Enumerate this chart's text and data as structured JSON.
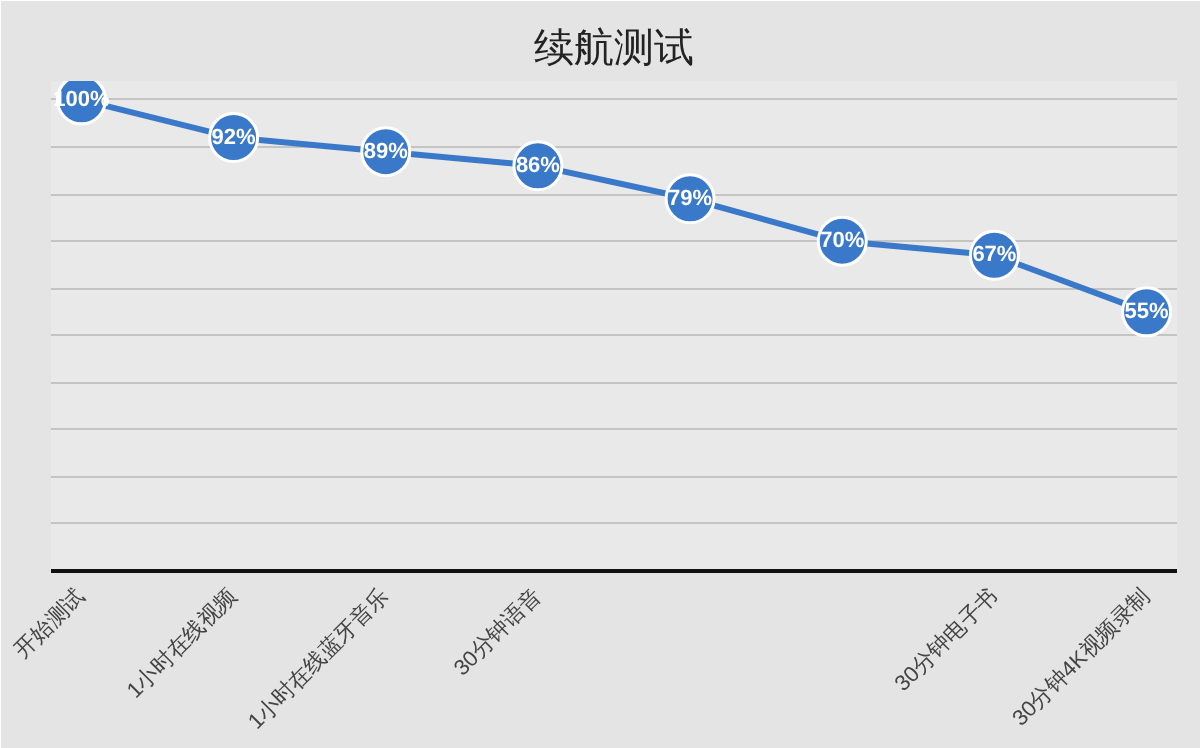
{
  "chart_data": {
    "type": "line",
    "title": "续航测试",
    "categories": [
      "开始测试",
      "1小时在线视频",
      "1小时在线蓝牙音乐",
      "30分钟语音",
      null,
      null,
      "30分钟电子书",
      "30分钟4K视频录制"
    ],
    "values": [
      100,
      92,
      89,
      86,
      79,
      70,
      67,
      55
    ],
    "value_labels": [
      "100%",
      "92%",
      "89%",
      "86%",
      "79%",
      "70%",
      "67%",
      "55%"
    ],
    "color": "#3a78c9",
    "marker": "circle",
    "line_style": "solid",
    "ylim": [
      0,
      104
    ],
    "yticks": [
      {
        "value": 0,
        "label": null
      },
      {
        "value": 10,
        "label": null
      },
      {
        "value": 20,
        "label": null
      },
      {
        "value": 30,
        "label": null
      },
      {
        "value": 40,
        "label": null
      },
      {
        "value": 50,
        "label": null
      },
      {
        "value": 60,
        "label": null
      },
      {
        "value": 70,
        "label": null
      },
      {
        "value": 80,
        "label": null
      },
      {
        "value": 90,
        "label": null
      },
      {
        "value": 100,
        "label": null
      }
    ],
    "grid": "y",
    "tick_labels": "x"
  }
}
